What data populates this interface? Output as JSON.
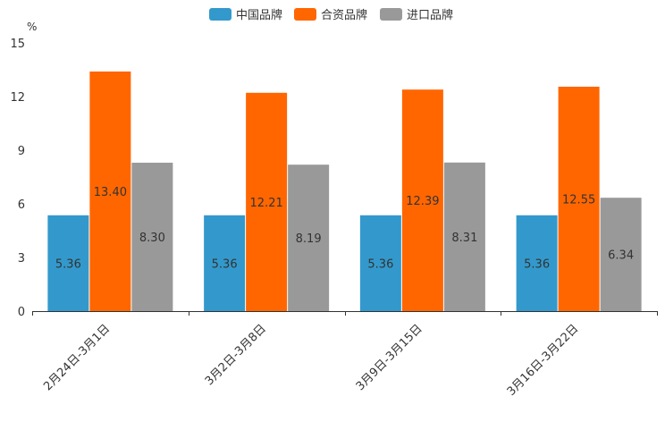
{
  "chart_data": {
    "type": "bar",
    "title": "",
    "xlabel": "",
    "ylabel": "%",
    "ylim": [
      0,
      15
    ],
    "yticks": [
      0,
      3,
      6,
      9,
      12,
      15
    ],
    "grid": false,
    "legend_position": "top-center",
    "categories": [
      "2月24日-3月1日",
      "3月2日-3月8日",
      "3月9日-3月15日",
      "3月16日-3月22日"
    ],
    "series": [
      {
        "name": "中国品牌",
        "color": "#3399cc",
        "values": [
          5.36,
          5.36,
          5.36,
          5.36
        ],
        "labels": [
          "5.36",
          "5.36",
          "5.36",
          "5.36"
        ]
      },
      {
        "name": "合资品牌",
        "color": "#ff6600",
        "values": [
          13.4,
          12.21,
          12.39,
          12.55
        ],
        "labels": [
          "13.40",
          "12.21",
          "12.39",
          "12.55"
        ]
      },
      {
        "name": "进口品牌",
        "color": "#999999",
        "values": [
          8.3,
          8.19,
          8.31,
          6.34
        ],
        "labels": [
          "8.30",
          "8.19",
          "8.31",
          "6.34"
        ]
      }
    ]
  }
}
